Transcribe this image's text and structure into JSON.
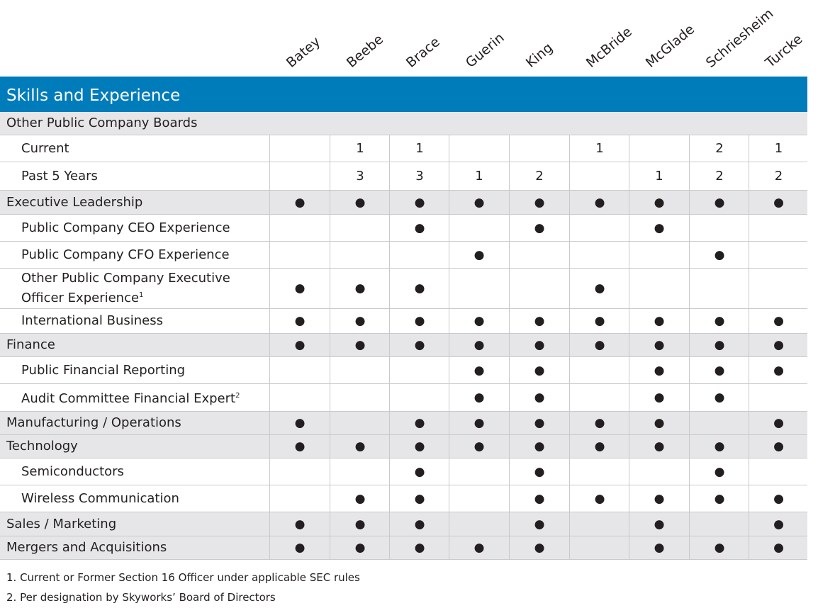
{
  "directors": [
    "Batey",
    "Beebe",
    "Brace",
    "Guerin",
    "King",
    "McBride",
    "McGlade",
    "Schriesheim",
    "Turcke"
  ],
  "title": "Skills and Experience",
  "rows": [
    {
      "label": "Other Public Company Boards",
      "type": "group-full",
      "cells": [
        "",
        "",
        "",
        "",
        "",
        "",
        "",
        "",
        ""
      ]
    },
    {
      "label": "Current",
      "type": "sub",
      "cells": [
        "",
        "1",
        "1",
        "",
        "",
        "1",
        "",
        "2",
        "1"
      ]
    },
    {
      "label": "Past 5 Years",
      "type": "sub",
      "cells": [
        "",
        "3",
        "3",
        "1",
        "2",
        "",
        "1",
        "2",
        "2"
      ]
    },
    {
      "label": "Executive Leadership",
      "type": "group",
      "cells": [
        "●",
        "●",
        "●",
        "●",
        "●",
        "●",
        "●",
        "●",
        "●"
      ]
    },
    {
      "label": "Public Company CEO Experience",
      "type": "sub",
      "cells": [
        "",
        "",
        "●",
        "",
        "●",
        "",
        "●",
        "",
        ""
      ]
    },
    {
      "label": "Public Company CFO Experience",
      "type": "sub",
      "cells": [
        "",
        "",
        "",
        "●",
        "",
        "",
        "",
        "●",
        ""
      ]
    },
    {
      "label": "Other Public Company Executive Officer Experience",
      "sup": "1",
      "type": "sub",
      "cells": [
        "●",
        "●",
        "●",
        "",
        "",
        "●",
        "",
        "",
        ""
      ]
    },
    {
      "label": "International Business",
      "type": "sub",
      "cells": [
        "●",
        "●",
        "●",
        "●",
        "●",
        "●",
        "●",
        "●",
        "●"
      ]
    },
    {
      "label": "Finance",
      "type": "group",
      "cells": [
        "●",
        "●",
        "●",
        "●",
        "●",
        "●",
        "●",
        "●",
        "●"
      ]
    },
    {
      "label": "Public Financial Reporting",
      "type": "sub",
      "cells": [
        "",
        "",
        "",
        "●",
        "●",
        "",
        "●",
        "●",
        "●"
      ]
    },
    {
      "label": "Audit Committee Financial Expert",
      "sup": "2",
      "type": "sub",
      "cells": [
        "",
        "",
        "",
        "●",
        "●",
        "",
        "●",
        "●",
        ""
      ]
    },
    {
      "label": "Manufacturing / Operations",
      "type": "group",
      "cells": [
        "●",
        "",
        "●",
        "●",
        "●",
        "●",
        "●",
        "",
        "●"
      ]
    },
    {
      "label": "Technology",
      "type": "group",
      "cells": [
        "●",
        "●",
        "●",
        "●",
        "●",
        "●",
        "●",
        "●",
        "●"
      ]
    },
    {
      "label": "Semiconductors",
      "type": "sub",
      "cells": [
        "",
        "",
        "●",
        "",
        "●",
        "",
        "",
        "●",
        ""
      ]
    },
    {
      "label": "Wireless Communication",
      "type": "sub",
      "cells": [
        "",
        "●",
        "●",
        "",
        "●",
        "●",
        "●",
        "●",
        "●"
      ]
    },
    {
      "label": "Sales / Marketing",
      "type": "group",
      "cells": [
        "●",
        "●",
        "●",
        "",
        "●",
        "",
        "●",
        "",
        "●"
      ]
    },
    {
      "label": "Mergers and Acquisitions",
      "type": "group",
      "cells": [
        "●",
        "●",
        "●",
        "●",
        "●",
        "",
        "●",
        "●",
        "●"
      ]
    }
  ],
  "footnotes": [
    "1. Current or Former Section 16 Officer under applicable SEC rules",
    "2. Per designation by Skyworks’ Board of Directors"
  ],
  "colors": {
    "header": "#007cbb",
    "group_row": "#e6e6e8",
    "border": "#c9c9cc"
  }
}
